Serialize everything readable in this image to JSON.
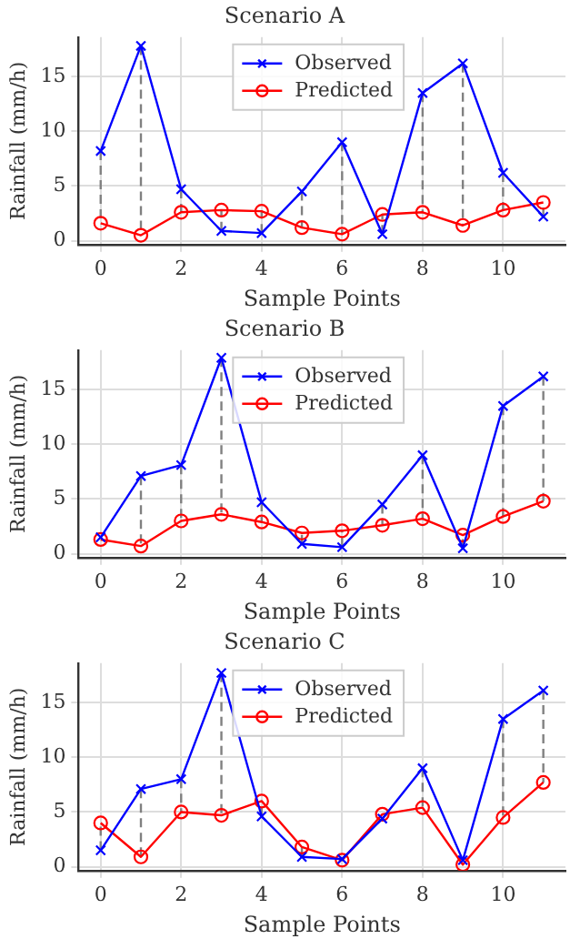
{
  "chart_data": [
    {
      "type": "line",
      "title": "Scenario A",
      "xlabel": "Sample Points",
      "ylabel": "Rainfall (mm/h)",
      "x": [
        0,
        1,
        2,
        3,
        4,
        5,
        6,
        7,
        8,
        9,
        10,
        11
      ],
      "xlim": [
        -0.55,
        11.55
      ],
      "xticks": [
        0,
        2,
        4,
        6,
        8,
        10
      ],
      "ylim": [
        -0.35,
        18.6
      ],
      "yticks": [
        0,
        5,
        10,
        15
      ],
      "grid": true,
      "legend": "top",
      "series": [
        {
          "name": "Observed",
          "color": "#0000ff",
          "marker": "cross",
          "values": [
            8.2,
            17.8,
            4.7,
            0.9,
            0.7,
            4.5,
            9.0,
            0.6,
            13.5,
            16.2,
            6.2,
            2.2
          ]
        },
        {
          "name": "Predicted",
          "color": "#ff0000",
          "marker": "circle",
          "values": [
            1.6,
            0.5,
            2.6,
            2.8,
            2.7,
            1.2,
            0.6,
            2.4,
            2.6,
            1.4,
            2.8,
            3.5
          ]
        },
        {
          "color": "#808080",
          "marker": "none",
          "line_style": "dashed",
          "x": [
            0,
            0,
            null,
            1,
            1,
            null,
            2,
            2,
            null,
            3,
            3,
            null,
            4,
            4,
            null,
            5,
            5,
            null,
            6,
            6,
            null,
            7,
            7,
            null,
            8,
            8,
            null,
            9,
            9,
            null,
            10,
            10,
            null,
            11,
            11
          ],
          "values": [
            8.2,
            1.6,
            null,
            17.8,
            0.5,
            null,
            4.7,
            2.6,
            null,
            0.9,
            2.8,
            null,
            0.7,
            2.7,
            null,
            4.5,
            1.2,
            null,
            9.0,
            0.6,
            null,
            0.6,
            2.4,
            null,
            13.5,
            2.6,
            null,
            16.2,
            1.4,
            null,
            6.2,
            2.8,
            null,
            2.2,
            3.5
          ]
        }
      ]
    },
    {
      "type": "line",
      "title": "Scenario B",
      "xlabel": "Sample Points",
      "ylabel": "Rainfall (mm/h)",
      "x": [
        0,
        1,
        2,
        3,
        4,
        5,
        6,
        7,
        8,
        9,
        10,
        11
      ],
      "xlim": [
        -0.55,
        11.55
      ],
      "xticks": [
        0,
        2,
        4,
        6,
        8,
        10
      ],
      "ylim": [
        -0.35,
        18.6
      ],
      "yticks": [
        0,
        5,
        10,
        15
      ],
      "grid": true,
      "legend": "top",
      "series": [
        {
          "name": "Observed",
          "color": "#0000ff",
          "marker": "cross",
          "values": [
            1.5,
            7.1,
            8.1,
            17.9,
            4.7,
            0.9,
            0.6,
            4.5,
            9.0,
            0.5,
            13.5,
            16.2
          ]
        },
        {
          "name": "Predicted",
          "color": "#ff0000",
          "marker": "circle",
          "values": [
            1.3,
            0.7,
            3.0,
            3.6,
            2.9,
            1.9,
            2.1,
            2.6,
            3.2,
            1.7,
            3.4,
            4.8
          ]
        },
        {
          "color": "#808080",
          "marker": "none",
          "line_style": "dashed",
          "x": [
            1,
            1,
            null,
            2,
            2,
            null,
            3,
            3,
            null,
            4,
            4,
            null,
            5,
            5,
            null,
            6,
            6,
            null,
            7,
            7,
            null,
            8,
            8,
            null,
            9,
            9,
            null,
            10,
            10,
            null,
            11,
            11
          ],
          "values": [
            7.1,
            0.7,
            null,
            8.1,
            3.0,
            null,
            17.9,
            3.6,
            null,
            4.7,
            2.9,
            null,
            0.9,
            1.9,
            null,
            0.6,
            2.1,
            null,
            4.5,
            2.6,
            null,
            9.0,
            3.2,
            null,
            0.5,
            1.7,
            null,
            13.5,
            3.4,
            null,
            16.2,
            4.8
          ]
        }
      ]
    },
    {
      "type": "line",
      "title": "Scenario C",
      "xlabel": "Sample Points",
      "ylabel": "Rainfall (mm/h)",
      "x": [
        0,
        1,
        2,
        3,
        4,
        5,
        6,
        7,
        8,
        9,
        10,
        11
      ],
      "xlim": [
        -0.55,
        11.55
      ],
      "xticks": [
        0,
        2,
        4,
        6,
        8,
        10
      ],
      "ylim": [
        -0.35,
        18.6
      ],
      "yticks": [
        0,
        5,
        10,
        15
      ],
      "grid": true,
      "legend": "top",
      "series": [
        {
          "name": "Observed",
          "color": "#0000ff",
          "marker": "cross",
          "values": [
            1.5,
            7.1,
            8.0,
            17.7,
            4.6,
            0.9,
            0.7,
            4.4,
            9.0,
            0.6,
            13.5,
            16.1
          ]
        },
        {
          "name": "Predicted",
          "color": "#ff0000",
          "marker": "circle",
          "values": [
            4.0,
            0.9,
            5.0,
            4.7,
            6.0,
            1.8,
            0.6,
            4.8,
            5.4,
            0.2,
            4.5,
            7.7
          ]
        },
        {
          "color": "#808080",
          "marker": "none",
          "line_style": "dashed",
          "x": [
            0,
            0,
            null,
            1,
            1,
            null,
            2,
            2,
            null,
            3,
            3,
            null,
            4,
            4,
            null,
            5,
            5,
            null,
            8,
            8,
            null,
            10,
            10,
            null,
            11,
            11
          ],
          "values": [
            1.5,
            4.0,
            null,
            7.1,
            0.9,
            null,
            8.0,
            5.0,
            null,
            17.7,
            4.7,
            null,
            4.6,
            6.0,
            null,
            0.9,
            1.8,
            null,
            9.0,
            5.4,
            null,
            13.5,
            4.5,
            null,
            16.1,
            7.7
          ]
        }
      ]
    }
  ]
}
